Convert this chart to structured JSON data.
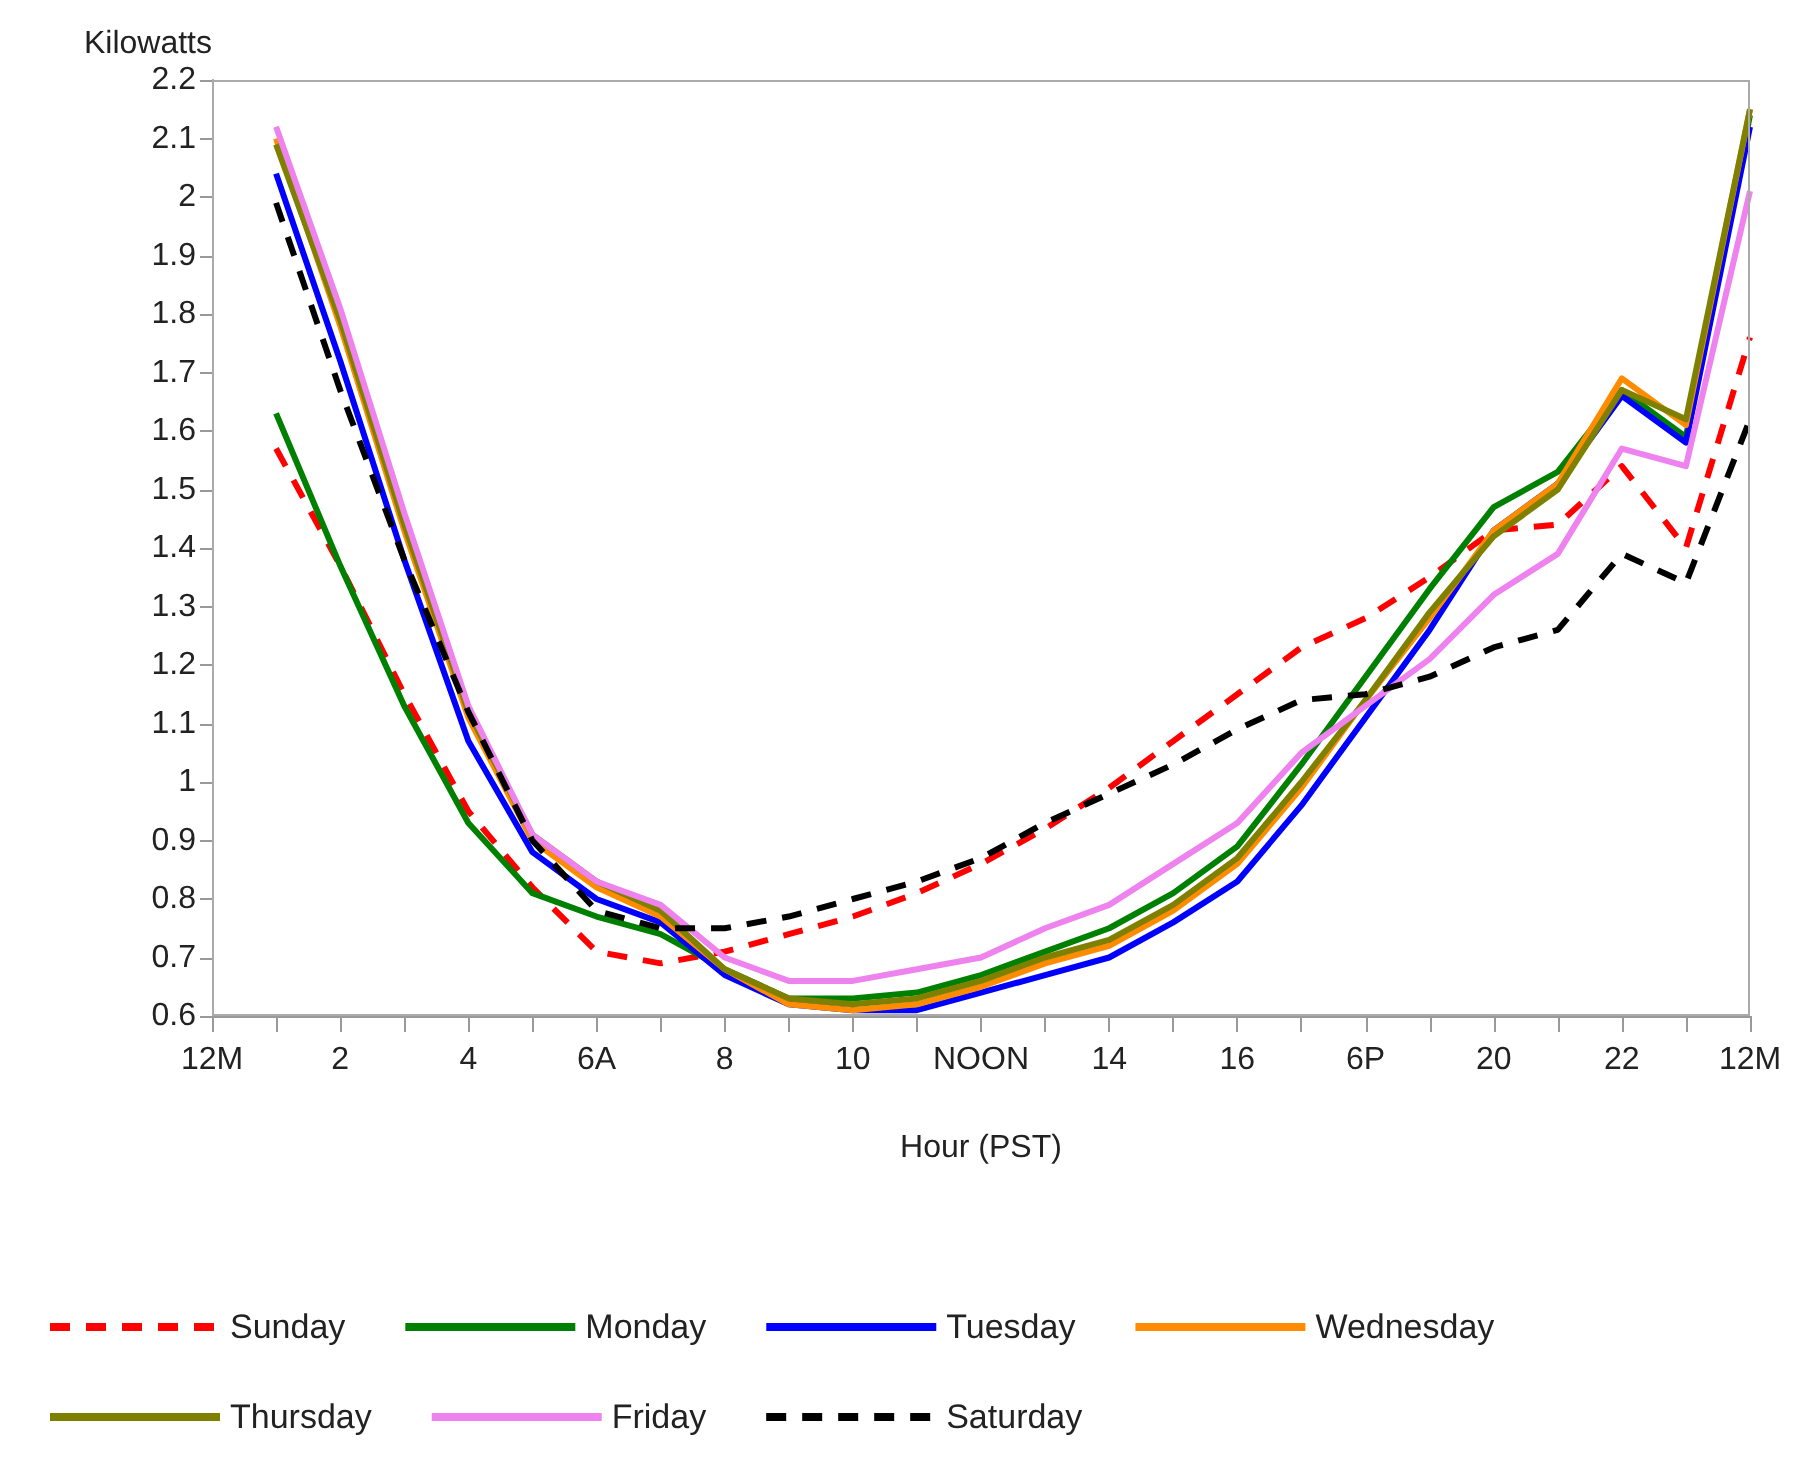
{
  "chart_data": {
    "type": "line",
    "xlabel": "Hour (PST)",
    "ylabel": "Kilowatts",
    "categories": [
      "12M",
      null,
      "2",
      null,
      "4",
      null,
      "6A",
      null,
      "8",
      null,
      "10",
      null,
      "NOON",
      null,
      "14",
      null,
      "16",
      null,
      "6P",
      null,
      "20",
      null,
      "22",
      null,
      "12M"
    ],
    "ylim": [
      0.6,
      2.2
    ],
    "yticks": [
      0.6,
      0.7,
      0.8,
      0.9,
      1.0,
      1.1,
      1.2,
      1.3,
      1.4,
      1.5,
      1.6,
      1.7,
      1.8,
      1.9,
      2.0,
      2.1,
      2.2
    ],
    "grid": false,
    "legend": "bottom",
    "marker": "none",
    "series": [
      {
        "name": "Sunday",
        "color": "#ff0000",
        "line_style": "dashed",
        "values": [
          null,
          1.57,
          1.37,
          1.15,
          0.95,
          0.82,
          0.71,
          0.69,
          0.71,
          0.74,
          0.77,
          0.81,
          0.86,
          0.92,
          0.99,
          1.07,
          1.15,
          1.23,
          1.28,
          1.35,
          1.43,
          1.44,
          1.54,
          1.4,
          1.76
        ]
      },
      {
        "name": "Monday",
        "color": "#008000",
        "line_style": "solid",
        "values": [
          null,
          1.63,
          1.37,
          1.13,
          0.93,
          0.81,
          0.77,
          0.74,
          0.68,
          0.63,
          0.63,
          0.64,
          0.67,
          0.71,
          0.75,
          0.81,
          0.89,
          1.03,
          1.18,
          1.33,
          1.47,
          1.53,
          1.67,
          1.59,
          2.14
        ]
      },
      {
        "name": "Tuesday",
        "color": "#0000ff",
        "line_style": "solid",
        "values": [
          null,
          2.04,
          1.72,
          1.38,
          1.07,
          0.88,
          0.8,
          0.76,
          0.67,
          0.62,
          0.61,
          0.61,
          0.64,
          0.67,
          0.7,
          0.76,
          0.83,
          0.96,
          1.11,
          1.26,
          1.43,
          1.51,
          1.66,
          1.58,
          2.12
        ]
      },
      {
        "name": "Wednesday",
        "color": "#ff8c00",
        "line_style": "solid",
        "values": [
          null,
          2.1,
          1.78,
          1.43,
          1.11,
          0.9,
          0.82,
          0.77,
          0.68,
          0.62,
          0.61,
          0.62,
          0.65,
          0.69,
          0.72,
          0.78,
          0.86,
          0.99,
          1.14,
          1.28,
          1.43,
          1.51,
          1.69,
          1.61,
          2.15
        ]
      },
      {
        "name": "Thursday",
        "color": "#808000",
        "line_style": "solid",
        "values": [
          null,
          2.09,
          1.79,
          1.44,
          1.12,
          0.91,
          0.83,
          0.78,
          0.68,
          0.63,
          0.62,
          0.63,
          0.66,
          0.7,
          0.73,
          0.79,
          0.87,
          1.0,
          1.14,
          1.29,
          1.42,
          1.5,
          1.67,
          1.62,
          2.15
        ]
      },
      {
        "name": "Friday",
        "color": "#ee82ee",
        "line_style": "solid",
        "values": [
          null,
          2.12,
          1.81,
          1.46,
          1.13,
          0.91,
          0.83,
          0.79,
          0.7,
          0.66,
          0.66,
          0.68,
          0.7,
          0.75,
          0.79,
          0.86,
          0.93,
          1.05,
          1.13,
          1.21,
          1.32,
          1.39,
          1.57,
          1.54,
          2.01
        ]
      },
      {
        "name": "Saturday",
        "color": "#000000",
        "line_style": "dashed",
        "values": [
          null,
          1.99,
          1.67,
          1.38,
          1.12,
          0.9,
          0.78,
          0.75,
          0.75,
          0.77,
          0.8,
          0.83,
          0.87,
          0.93,
          0.98,
          1.03,
          1.09,
          1.14,
          1.15,
          1.18,
          1.23,
          1.26,
          1.39,
          1.34,
          1.62
        ]
      }
    ]
  }
}
